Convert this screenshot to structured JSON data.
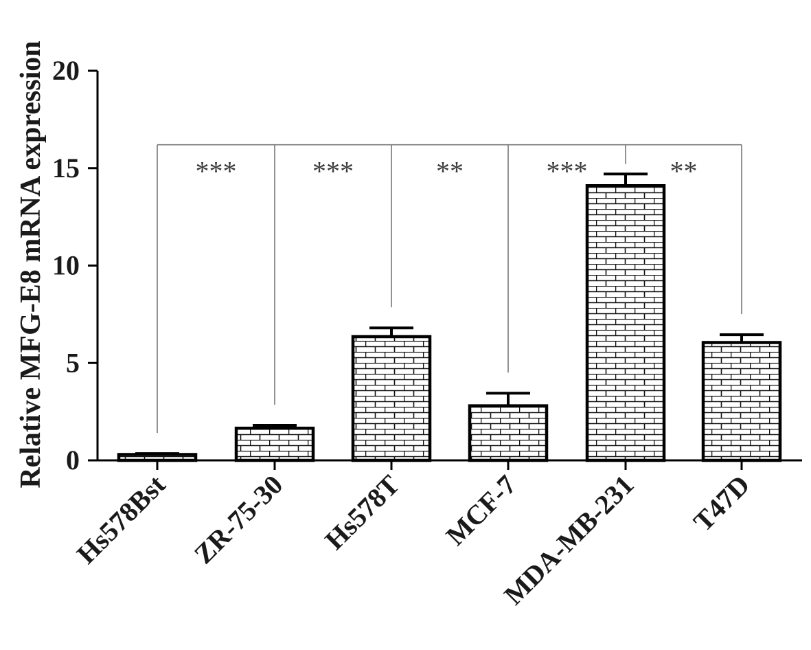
{
  "chart_data": {
    "type": "bar",
    "title": "",
    "xlabel": "",
    "ylabel": "Relative MFG-E8 mRNA expression",
    "ylim": [
      0,
      20
    ],
    "yticks": [
      0,
      5,
      10,
      15,
      20
    ],
    "categories": [
      "Hs578Bst",
      "ZR-75-30",
      "Hs578T",
      "MCF-7",
      "MDA-MB-231",
      "T47D"
    ],
    "series": [
      {
        "values": [
          0.3,
          1.65,
          6.35,
          2.8,
          14.1,
          6.05
        ],
        "errors": [
          0.05,
          0.15,
          0.45,
          0.65,
          0.6,
          0.4
        ]
      }
    ],
    "bar_fill": "brick-pattern",
    "bar_stroke": "#000000",
    "significance": [
      {
        "from": "Hs578Bst",
        "to": "ZR-75-30",
        "label": "***"
      },
      {
        "from": "ZR-75-30",
        "to": "Hs578T",
        "label": "***"
      },
      {
        "from": "Hs578T",
        "to": "MCF-7",
        "label": "**"
      },
      {
        "from": "MCF-7",
        "to": "MDA-MB-231",
        "label": "***"
      },
      {
        "from": "MDA-MB-231",
        "to": "T47D",
        "label": "**"
      }
    ],
    "significance_level": 16.2,
    "grid": false,
    "legend": "none"
  }
}
